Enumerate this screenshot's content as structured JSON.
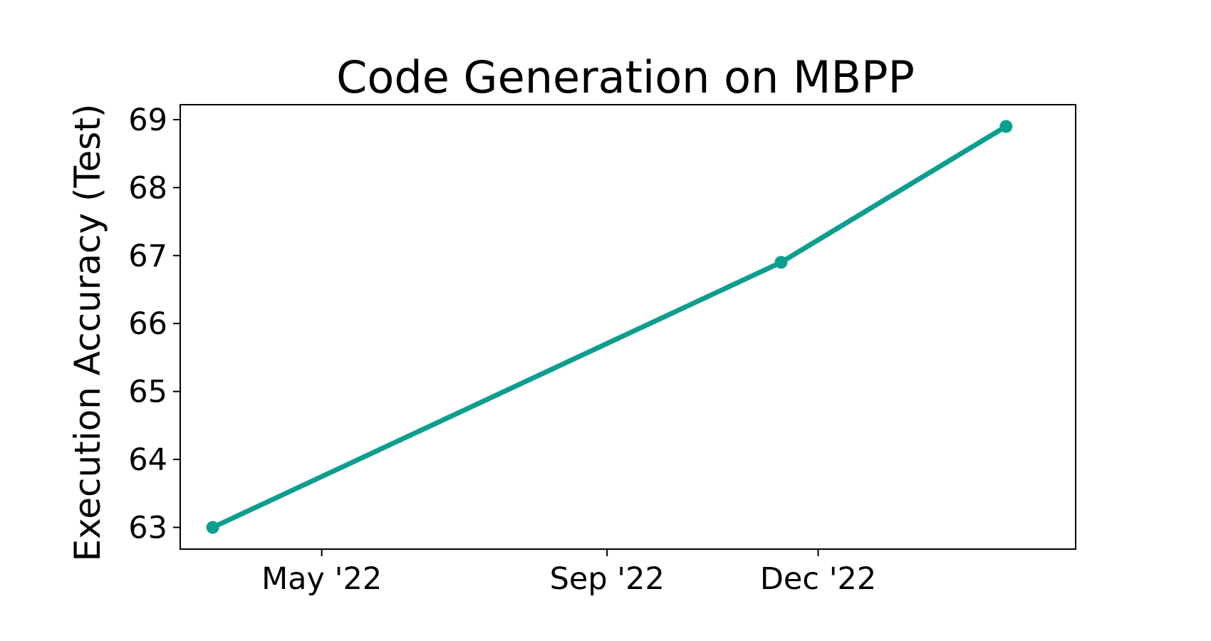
{
  "chart_data": {
    "type": "line",
    "title": "Code Generation on MBPP",
    "xlabel": "",
    "ylabel": "Execution Accuracy (Test)",
    "x": [
      "2022-03-15",
      "2022-11-15",
      "2023-02-20"
    ],
    "series": [
      {
        "values": [
          63.0,
          66.9,
          68.9
        ],
        "color": "#0e9e8e"
      }
    ],
    "xlim": [
      "2022-03-01",
      "2023-03-22"
    ],
    "ylim": [
      62.68,
      69.22
    ],
    "xticks": [
      {
        "date": "2022-05-01",
        "label": "May '22"
      },
      {
        "date": "2022-09-01",
        "label": "Sep '22"
      },
      {
        "date": "2022-12-01",
        "label": "Dec '22"
      }
    ],
    "yticks": [
      63,
      64,
      65,
      66,
      67,
      68,
      69
    ],
    "grid": false,
    "legend": "none"
  }
}
